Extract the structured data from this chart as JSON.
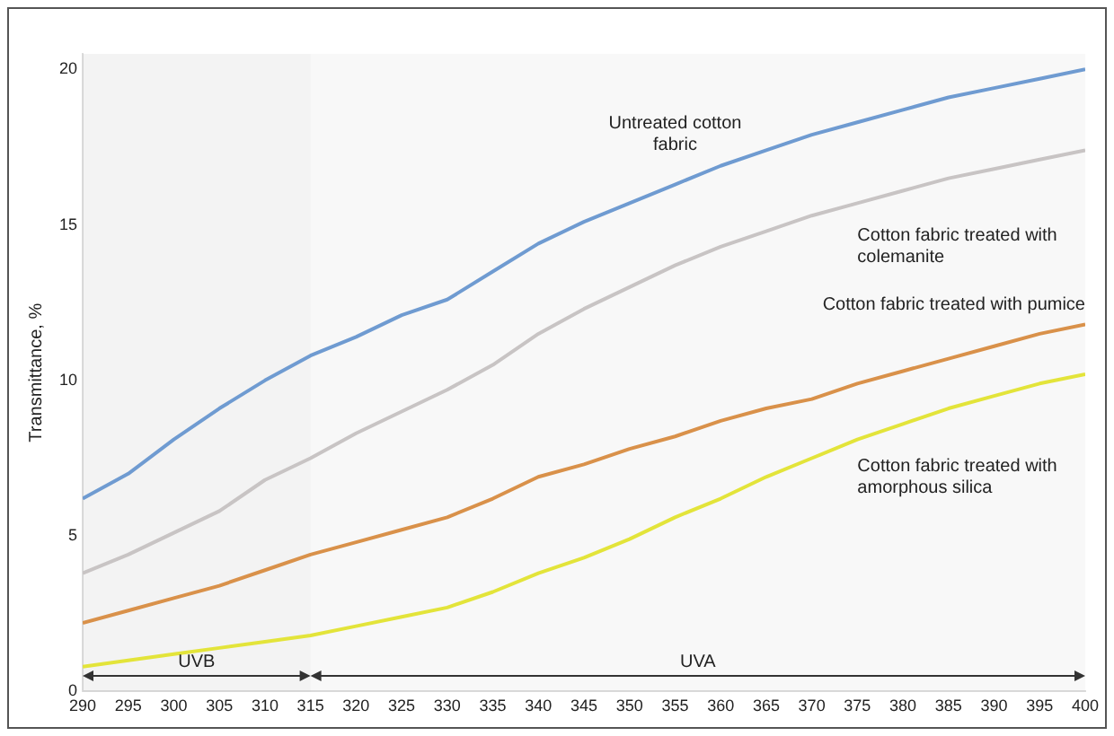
{
  "chart_data": {
    "type": "line",
    "ylabel": "Transmittance, %",
    "x": [
      290,
      295,
      300,
      305,
      310,
      315,
      320,
      325,
      330,
      335,
      340,
      345,
      350,
      355,
      360,
      365,
      370,
      375,
      380,
      385,
      390,
      395,
      400
    ],
    "series": [
      {
        "name": "Untreated cotton fabric",
        "color": "#6f9bd1",
        "values": [
          6.2,
          7.0,
          8.1,
          9.1,
          10.0,
          10.8,
          11.4,
          12.1,
          12.6,
          13.5,
          14.4,
          15.1,
          15.7,
          16.3,
          16.9,
          17.4,
          17.9,
          18.3,
          18.7,
          19.1,
          19.4,
          19.7,
          20.0
        ]
      },
      {
        "name": "Cotton fabric treated with colemanite",
        "color": "#c8c4c4",
        "values": [
          3.8,
          4.4,
          5.1,
          5.8,
          6.8,
          7.5,
          8.3,
          9.0,
          9.7,
          10.5,
          11.5,
          12.3,
          13.0,
          13.7,
          14.3,
          14.8,
          15.3,
          15.7,
          16.1,
          16.5,
          16.8,
          17.1,
          17.4
        ]
      },
      {
        "name": "Cotton fabric treated with pumice",
        "color": "#d9914a",
        "values": [
          2.2,
          2.6,
          3.0,
          3.4,
          3.9,
          4.4,
          4.8,
          5.2,
          5.6,
          6.2,
          6.9,
          7.3,
          7.8,
          8.2,
          8.7,
          9.1,
          9.4,
          9.9,
          10.3,
          10.7,
          11.1,
          11.5,
          11.8
        ]
      },
      {
        "name": "Cotton fabric treated with amorphous silica",
        "color": "#e3e43a",
        "values": [
          0.8,
          1.0,
          1.2,
          1.4,
          1.6,
          1.8,
          2.1,
          2.4,
          2.7,
          3.2,
          3.8,
          4.3,
          4.9,
          5.6,
          6.2,
          6.9,
          7.5,
          8.1,
          8.6,
          9.1,
          9.5,
          9.9,
          10.2
        ]
      }
    ],
    "xlim": [
      290,
      400
    ],
    "xticks": [
      290,
      295,
      300,
      305,
      310,
      315,
      320,
      325,
      330,
      335,
      340,
      345,
      350,
      355,
      360,
      365,
      370,
      375,
      380,
      385,
      390,
      395,
      400
    ],
    "ylim": [
      0,
      20.5
    ],
    "yticks": [
      0,
      5,
      10,
      15,
      20
    ],
    "bands": [
      {
        "axis": "x",
        "from": 290,
        "to": 315,
        "label": "UVB"
      },
      {
        "axis": "x",
        "from": 315,
        "to": 400,
        "label": "UVA"
      }
    ],
    "grid": false,
    "legend": false,
    "marker": "none",
    "line_style": "solid"
  }
}
